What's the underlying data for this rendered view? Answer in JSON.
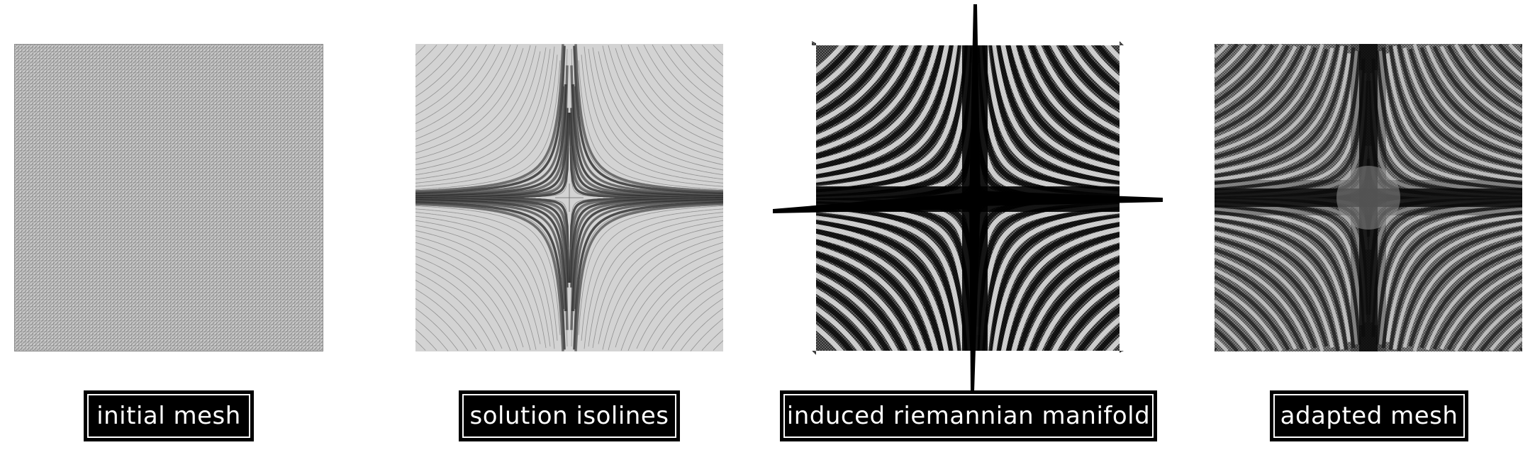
{
  "panels": [
    {
      "id": "initial",
      "label": "initial mesh"
    },
    {
      "id": "isolines",
      "label": "solution isolines"
    },
    {
      "id": "manifold",
      "label": "induced riemannian manifold"
    },
    {
      "id": "adapted",
      "label": "adapted mesh"
    }
  ],
  "colors": {
    "background": "#ffffff",
    "label_bg": "#000000",
    "label_text": "#ffffff",
    "mesh_gray": "#b8b8b8",
    "isoline_bg": "#d3d3d3"
  }
}
